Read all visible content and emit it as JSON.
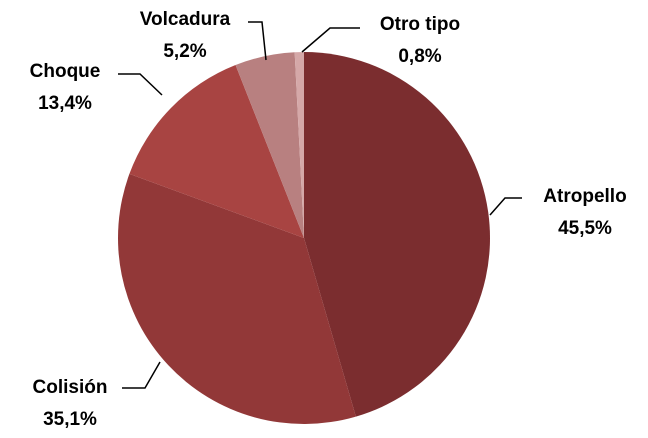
{
  "chart_data": {
    "type": "pie",
    "categories": [
      "Atropello",
      "Colisión",
      "Choque",
      "Volcadura",
      "Otro tipo"
    ],
    "values": [
      45.5,
      35.1,
      13.4,
      5.2,
      0.8
    ],
    "value_labels": [
      "45,5%",
      "35,1%",
      "13,4%",
      "5,2%",
      "0,8%"
    ],
    "colors": [
      "#7b2d2f",
      "#923838",
      "#a84442",
      "#b88080",
      "#d5a8a8"
    ]
  }
}
